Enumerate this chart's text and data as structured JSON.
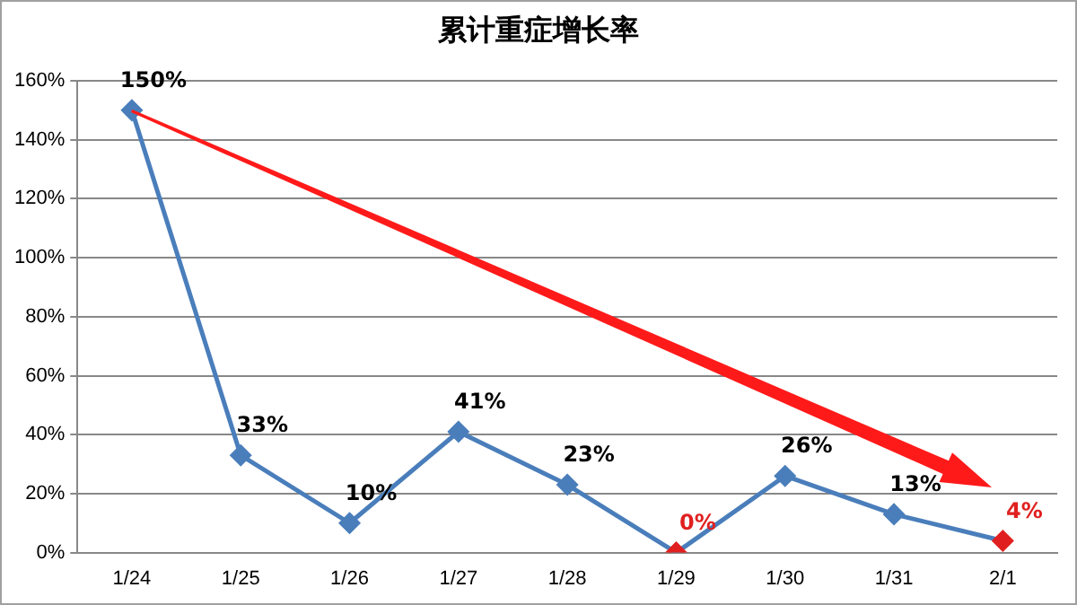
{
  "chart_data": {
    "type": "line",
    "title": "累计重症增长率",
    "categories": [
      "1/24",
      "1/25",
      "1/26",
      "1/27",
      "1/28",
      "1/29",
      "1/30",
      "1/31",
      "2/1"
    ],
    "series": [
      {
        "color": "#4a7ebb",
        "colors": [
          "#4a7ebb",
          "#4a7ebb",
          "#4a7ebb",
          "#4a7ebb",
          "#4a7ebb",
          "#e02020",
          "#4a7ebb",
          "#4a7ebb",
          "#e02020"
        ],
        "values": [
          150,
          33,
          10,
          41,
          23,
          0,
          26,
          13,
          4
        ],
        "value_labels": [
          "150%",
          "33%",
          "10%",
          "41%",
          "23%",
          "0%",
          "26%",
          "13%",
          "4%"
        ]
      }
    ],
    "ylim": [
      0,
      160
    ],
    "yticks": [
      {
        "value": 0,
        "label": "0%"
      },
      {
        "value": 20,
        "label": "20%"
      },
      {
        "value": 40,
        "label": "40%"
      },
      {
        "value": 60,
        "label": "60%"
      },
      {
        "value": 80,
        "label": "80%"
      },
      {
        "value": 100,
        "label": "100%"
      },
      {
        "value": 120,
        "label": "120%"
      },
      {
        "value": 140,
        "label": "140%"
      },
      {
        "value": 160,
        "label": "160%"
      }
    ],
    "grid": "y",
    "legend": false,
    "marker": "diamond",
    "line_style": "solid"
  }
}
